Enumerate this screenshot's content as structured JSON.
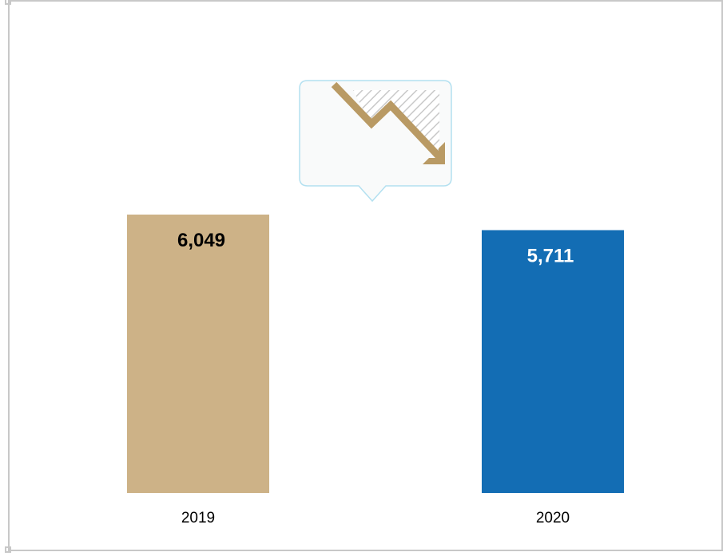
{
  "chart_data": {
    "type": "bar",
    "categories": [
      "2019",
      "2020"
    ],
    "values": [
      6049,
      5711
    ],
    "value_labels": [
      "6,049",
      "5,711"
    ],
    "colors": [
      "#cdb287",
      "#136db4"
    ],
    "label_colors": [
      "#000000",
      "#ffffff"
    ],
    "title": "",
    "xlabel": "",
    "ylabel": "",
    "ylim": [
      0,
      6049
    ],
    "grid": false,
    "legend": "none"
  },
  "decoration": {
    "callout_icon": "trend-down-arrow-icon",
    "arrow_color": "#b99a64",
    "callout_border_color": "#b3e0f0"
  }
}
